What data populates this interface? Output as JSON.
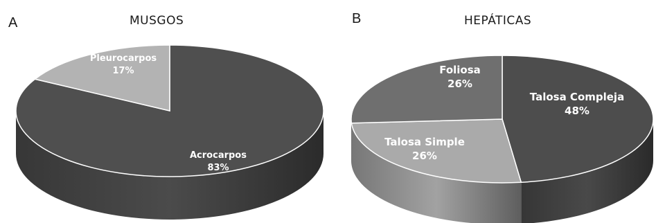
{
  "panels": [
    {
      "letter": "A",
      "title": "MUSGOS"
    },
    {
      "letter": "B",
      "title": "HEPÁTICAS"
    }
  ],
  "chart_data": [
    {
      "type": "pie",
      "title": "MUSGOS",
      "slices": [
        {
          "label": "Acrocarpos",
          "value_text": "83%",
          "value": 83,
          "color": "#4f4f4f"
        },
        {
          "label": "Pleurocarpos",
          "value_text": "17%",
          "value": 17,
          "color": "#b3b3b3"
        }
      ]
    },
    {
      "type": "pie",
      "title": "HEPÁTICAS",
      "slices": [
        {
          "label": "Talosa Compleja",
          "value_text": "48%",
          "value": 48,
          "color": "#4d4d4d"
        },
        {
          "label": "Talosa Simple",
          "value_text": "26%",
          "value": 26,
          "color": "#aaaaaa"
        },
        {
          "label": "Foliosa",
          "value_text": "26%",
          "value": 26,
          "color": "#6f6f6f"
        }
      ]
    }
  ]
}
